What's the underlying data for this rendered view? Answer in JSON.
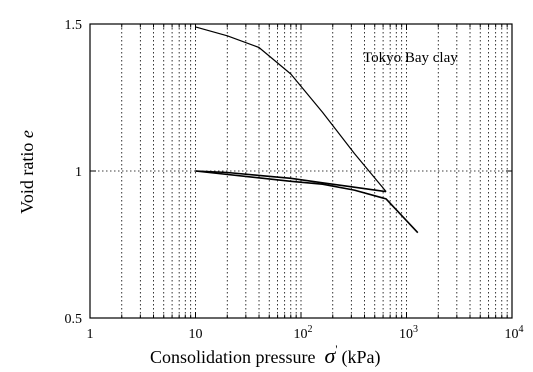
{
  "chart_data": {
    "type": "line",
    "xscale": "log",
    "xlim": [
      1,
      10000
    ],
    "ylim": [
      0.5,
      1.5
    ],
    "x_ticks": [
      "1",
      "10",
      "10^2",
      "10^3",
      "10^4"
    ],
    "y_ticks": [
      "0.5",
      "1",
      "1.5"
    ],
    "xlabel": "Consolidation pressure",
    "xlabel_symbol": "σ",
    "xlabel_prime": "'",
    "xlabel_unit": "(kPa)",
    "ylabel": "Void ratio",
    "ylabel_symbol": "e",
    "annotation": "Tokyo Bay clay",
    "grid": {
      "x_minor": true,
      "y_major": true,
      "style": "dotted"
    },
    "series": [
      {
        "values": [
          [
            10,
            1.49
          ],
          [
            20,
            1.46
          ],
          [
            40,
            1.42
          ],
          [
            80,
            1.33
          ],
          [
            160,
            1.2
          ],
          [
            320,
            1.06
          ],
          [
            640,
            0.93
          ]
        ]
      },
      {
        "values": [
          [
            640,
            0.93
          ],
          [
            320,
            0.945
          ],
          [
            160,
            0.96
          ],
          [
            80,
            0.975
          ],
          [
            40,
            0.985
          ],
          [
            20,
            0.995
          ],
          [
            10,
            1.0
          ]
        ]
      },
      {
        "values": [
          [
            10,
            1.0
          ],
          [
            80,
            0.965
          ],
          [
            160,
            0.955
          ],
          [
            320,
            0.935
          ],
          [
            640,
            0.905
          ],
          [
            1280,
            0.79
          ]
        ]
      }
    ]
  }
}
